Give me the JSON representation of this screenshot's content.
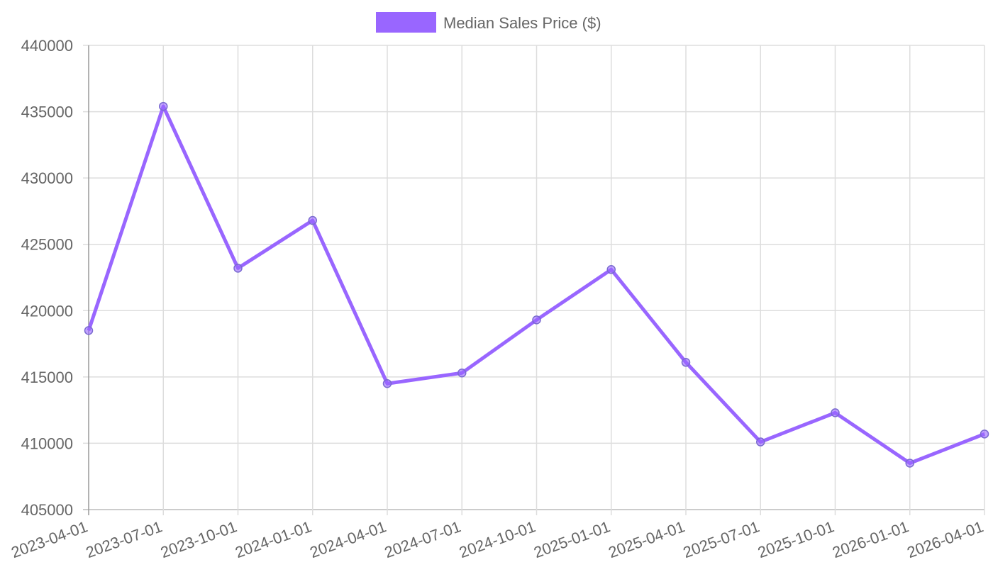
{
  "chart_data": {
    "type": "line",
    "categories": [
      "2023-04-01",
      "2023-07-01",
      "2023-10-01",
      "2024-01-01",
      "2024-04-01",
      "2024-07-01",
      "2024-10-01",
      "2025-01-01",
      "2025-04-01",
      "2025-07-01",
      "2025-10-01",
      "2026-01-01",
      "2026-04-01"
    ],
    "series": [
      {
        "name": "Median Sales Price ($)",
        "color": "#9966ff",
        "values": [
          418500,
          435400,
          423200,
          426800,
          414500,
          415300,
          419300,
          423100,
          416100,
          410100,
          412300,
          408500,
          410700
        ]
      }
    ],
    "ylim": [
      405000,
      440000
    ],
    "yticks": [
      405000,
      410000,
      415000,
      420000,
      425000,
      430000,
      435000,
      440000
    ],
    "grid": true,
    "legend": "top"
  }
}
